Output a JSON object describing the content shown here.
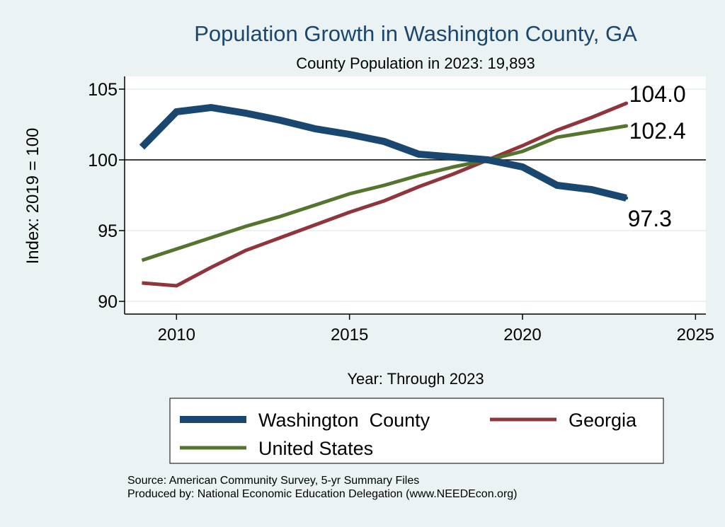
{
  "chart_data": {
    "type": "line",
    "title": "Population Growth in Washington County, GA",
    "subtitle": "County Population in 2023: 19,893",
    "xlabel": "Year: Through 2023",
    "ylabel": "Index: 2019 = 100",
    "xlim": [
      2008.5,
      2025.3
    ],
    "ylim": [
      89.1,
      105.9
    ],
    "xticks": [
      2010,
      2015,
      2020,
      2025
    ],
    "yticks": [
      90,
      95,
      100,
      105
    ],
    "reference_line": 100,
    "grid": true,
    "legend_placement": "bottom",
    "x": [
      2009,
      2010,
      2011,
      2012,
      2013,
      2014,
      2015,
      2016,
      2017,
      2018,
      2019,
      2020,
      2021,
      2022,
      2023
    ],
    "series": [
      {
        "name": "Washington  County",
        "color": "#1a476f",
        "end_label": "97.3",
        "values": [
          100.9,
          103.4,
          103.7,
          103.3,
          102.8,
          102.2,
          101.8,
          101.3,
          100.4,
          100.2,
          100.0,
          99.5,
          98.2,
          97.9,
          97.3
        ]
      },
      {
        "name": "Georgia",
        "color": "#90353b",
        "end_label": "104.0",
        "values": [
          91.3,
          91.1,
          92.4,
          93.6,
          94.5,
          95.4,
          96.3,
          97.1,
          98.1,
          99.0,
          100.0,
          101.0,
          102.1,
          103.0,
          104.0
        ]
      },
      {
        "name": "United States",
        "color": "#55752f",
        "end_label": "102.4",
        "values": [
          92.9,
          93.7,
          94.5,
          95.3,
          96.0,
          96.8,
          97.6,
          98.2,
          98.9,
          99.5,
          100.0,
          100.6,
          101.6,
          102.0,
          102.4
        ]
      }
    ]
  },
  "notes": {
    "source": "Source: American Community Survey, 5-yr Summary Files",
    "produced": "Produced by: National Economic Education Delegation (www.NEEDEcon.org)"
  }
}
